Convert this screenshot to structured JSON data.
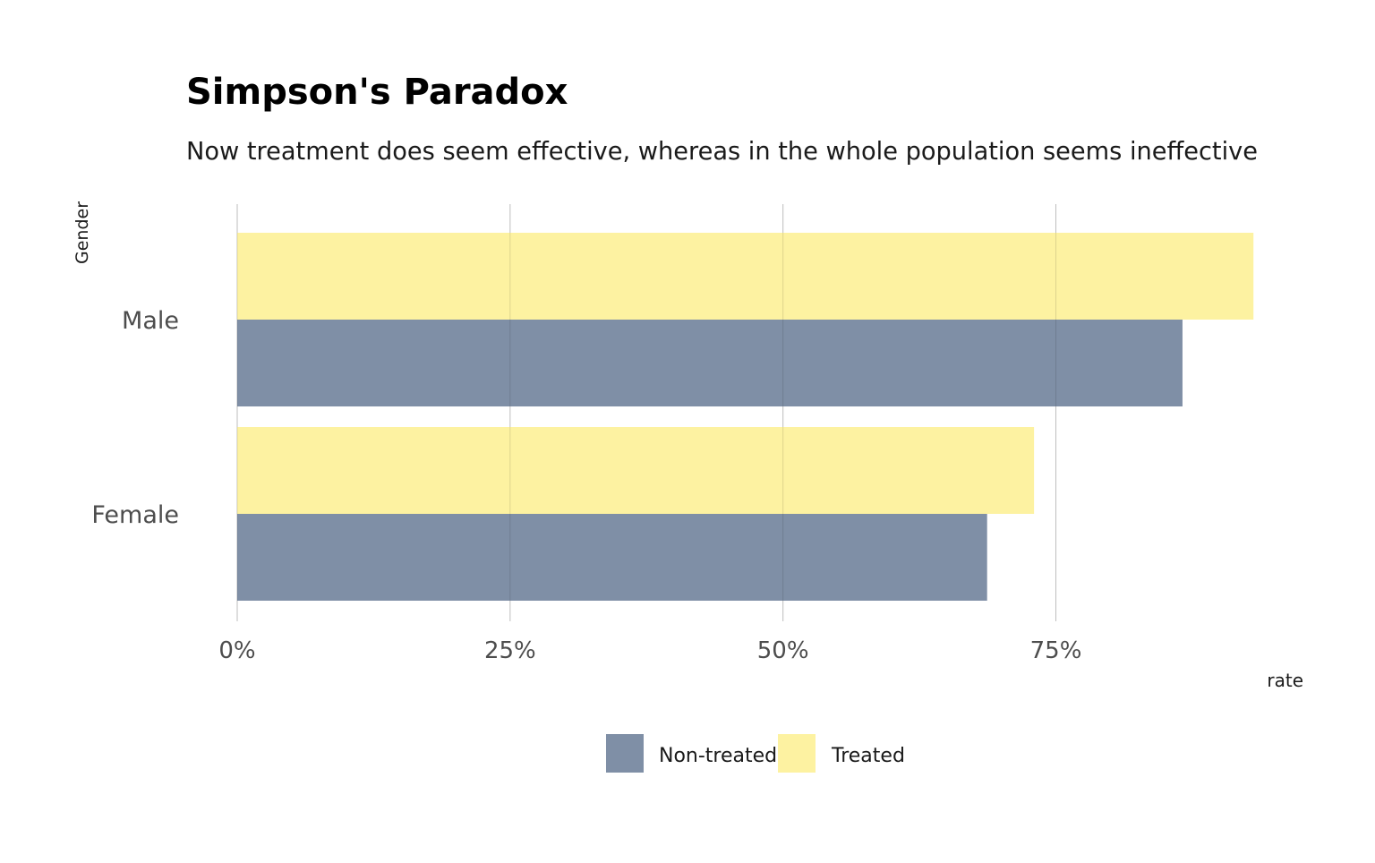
{
  "chart_data": {
    "type": "bar",
    "orientation": "horizontal",
    "title": "Simpson's Paradox",
    "subtitle": "Now treatment does seem effective, whereas in the whole population seems ineffective",
    "xlabel": "rate",
    "ylabel": "Gender",
    "categories": [
      "Male",
      "Female"
    ],
    "series": [
      {
        "name": "Non-treated",
        "color": "#7f8fa6",
        "values": [
          0.866,
          0.687
        ]
      },
      {
        "name": "Treated",
        "color": "#fdf2a1",
        "values": [
          0.931,
          0.73
        ]
      }
    ],
    "xlim": [
      0,
      0.93
    ],
    "xticks": [
      0,
      0.25,
      0.5,
      0.75
    ],
    "xtick_labels": [
      "0%",
      "25%",
      "50%",
      "75%"
    ],
    "grid": true,
    "legend_position": "bottom"
  }
}
